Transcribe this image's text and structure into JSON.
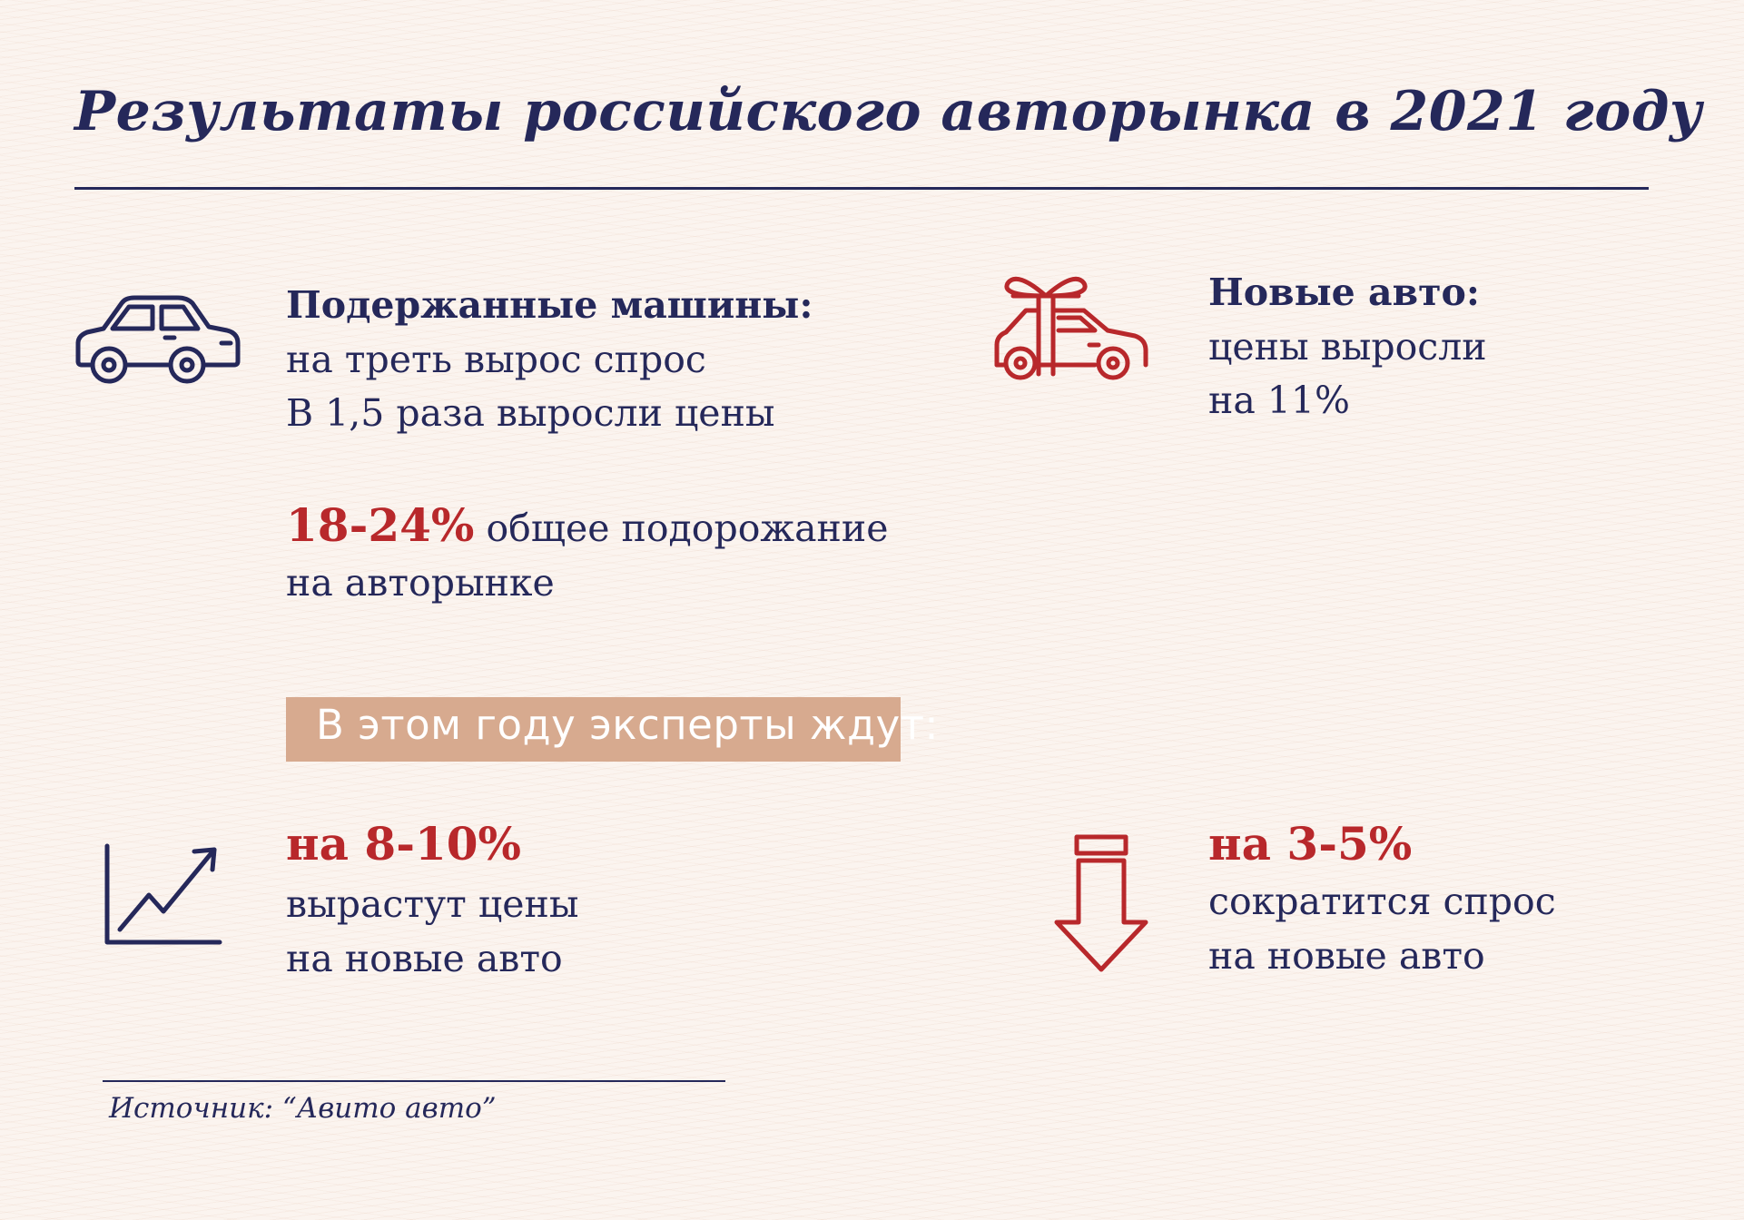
{
  "title": "Результаты российского авторынка в  2021 году",
  "used_cars": {
    "heading": "Подержанные машины:",
    "line1": "на треть вырос спрос",
    "line2": "В 1,5 раза выросли цены",
    "icon": "car-icon"
  },
  "overall": {
    "value": "18-24%",
    "text1": "общее подорожание",
    "text2": "на авторынке"
  },
  "new_cars": {
    "heading": "Новые авто:",
    "line1": "цены выросли",
    "line2": "на 11%",
    "icon": "gift-car-icon"
  },
  "banner": {
    "label": "В этом году эксперты ждут:",
    "color": "#d7aa8f"
  },
  "forecast_prices": {
    "value": "на 8-10%",
    "line1": "вырастут цены",
    "line2": "на новые авто",
    "icon": "growth-chart-icon"
  },
  "forecast_demand": {
    "value": "на 3-5%",
    "line1": "сократится спрос",
    "line2": "на новые авто",
    "icon": "down-arrow-icon"
  },
  "source": "Источник: “Авито авто”",
  "colors": {
    "navy": "#25285a",
    "accent_red": "#b8282b",
    "background": "#fbf4ef"
  }
}
